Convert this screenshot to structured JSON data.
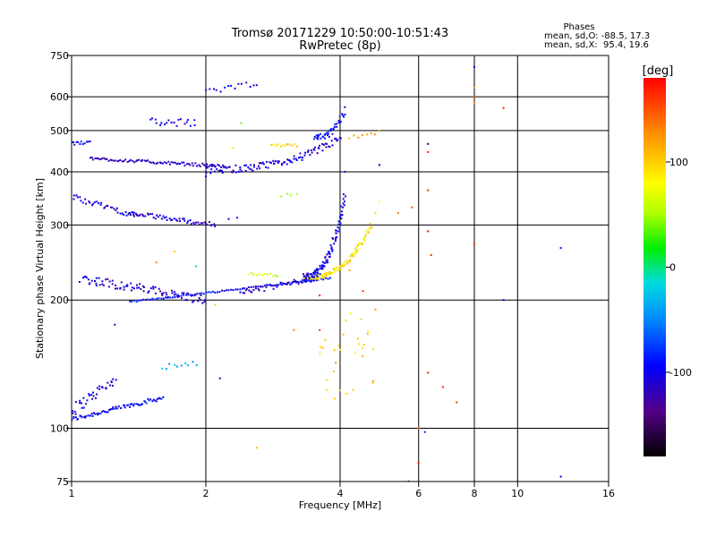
{
  "chart_data": {
    "type": "scatter",
    "title": "Tromsø 20171229 10:50:00-10:51:43",
    "subtitle": "RwPretec (8p)",
    "xlabel": "Frequency [MHz]",
    "ylabel": "Stationary phase Virtual Height [km]",
    "xscale": "log",
    "yscale": "log",
    "xlim": [
      1,
      16
    ],
    "ylim": [
      75,
      750
    ],
    "xticks": [
      1,
      2,
      4,
      6,
      8,
      10,
      16
    ],
    "xtick_labels": [
      "1",
      "2",
      "4",
      "6",
      "8",
      "10",
      "16"
    ],
    "yticks": [
      75,
      100,
      200,
      300,
      400,
      500,
      600,
      750
    ],
    "ytick_labels": [
      "75",
      "100",
      "200",
      "300",
      "400",
      "500",
      "600",
      "750"
    ],
    "grid": true,
    "phase_header": {
      "title": "Phases",
      "line1": "mean, sd,O: -88.5, 17.3",
      "line2": "mean, sd,X:  95.4, 19.6"
    },
    "colorbar": {
      "label": "[deg]",
      "range": [
        -180,
        180
      ],
      "ticks": [
        100,
        0,
        -100
      ],
      "tick_labels": [
        "100",
        "0",
        "-100"
      ]
    },
    "traces": [
      {
        "f0": 1.0,
        "f1": 1.6,
        "h0": 105,
        "h1": 118,
        "shape": "flat",
        "phase": -95,
        "n": 70,
        "jitter": 0.012
      },
      {
        "f0": 1.0,
        "f1": 1.25,
        "h0": 110,
        "h1": 130,
        "shape": "flat",
        "phase": -105,
        "n": 35,
        "jitter": 0.03
      },
      {
        "f0": 1.05,
        "f1": 2.0,
        "h0": 225,
        "h1": 200,
        "shape": "flat",
        "phase": -110,
        "n": 90,
        "jitter": 0.025
      },
      {
        "f0": 1.35,
        "f1": 3.8,
        "h0": 198,
        "h1": 225,
        "shape": "flat",
        "phase": -95,
        "n": 90,
        "jitter": 0.004
      },
      {
        "f0": 2.4,
        "f1": 3.5,
        "h0": 208,
        "h1": 225,
        "shape": "flat",
        "phase": -110,
        "n": 40,
        "jitter": 0.015
      },
      {
        "f0": 3.3,
        "f1": 4.7,
        "h0": 225,
        "h1": 300,
        "shape": "rise",
        "phase": 90,
        "n": 110,
        "jitter": 0.015
      },
      {
        "f0": 3.3,
        "f1": 4.1,
        "h0": 225,
        "h1": 350,
        "shape": "rise",
        "phase": -100,
        "n": 110,
        "jitter": 0.025
      },
      {
        "f0": 1.0,
        "f1": 1.4,
        "h0": 350,
        "h1": 315,
        "shape": "flat",
        "phase": -105,
        "n": 40,
        "jitter": 0.015
      },
      {
        "f0": 1.35,
        "f1": 2.1,
        "h0": 320,
        "h1": 300,
        "shape": "flat",
        "phase": -110,
        "n": 55,
        "jitter": 0.012
      },
      {
        "f0": 1.0,
        "f1": 1.1,
        "h0": 465,
        "h1": 470,
        "shape": "flat",
        "phase": -100,
        "n": 12,
        "jitter": 0.01
      },
      {
        "f0": 1.1,
        "f1": 2.2,
        "h0": 430,
        "h1": 412,
        "shape": "flat",
        "phase": -115,
        "n": 80,
        "jitter": 0.008
      },
      {
        "f0": 2.0,
        "f1": 4.0,
        "h0": 405,
        "h1": 480,
        "shape": "rise",
        "phase": -110,
        "n": 110,
        "jitter": 0.02
      },
      {
        "f0": 3.5,
        "f1": 4.1,
        "h0": 480,
        "h1": 560,
        "shape": "rise",
        "phase": -95,
        "n": 40,
        "jitter": 0.02
      },
      {
        "f0": 1.5,
        "f1": 1.9,
        "h0": 525,
        "h1": 520,
        "shape": "flat",
        "phase": -105,
        "n": 20,
        "jitter": 0.02
      },
      {
        "f0": 2.0,
        "f1": 2.6,
        "h0": 615,
        "h1": 645,
        "shape": "flat",
        "phase": -100,
        "n": 15,
        "jitter": 0.015
      },
      {
        "f0": 2.8,
        "f1": 3.2,
        "h0": 460,
        "h1": 462,
        "shape": "flat",
        "phase": 90,
        "n": 12,
        "jitter": 0.008
      },
      {
        "f0": 4.2,
        "f1": 4.9,
        "h0": 480,
        "h1": 495,
        "shape": "flat",
        "phase": 120,
        "n": 8,
        "jitter": 0.01
      },
      {
        "f0": 3.6,
        "f1": 4.8,
        "h0": 120,
        "h1": 190,
        "shape": "scatter",
        "phase": 100,
        "n": 30,
        "jitter": 0.05
      },
      {
        "f0": 1.6,
        "f1": 1.9,
        "h0": 140,
        "h1": 143,
        "shape": "flat",
        "phase": -30,
        "n": 10,
        "jitter": 0.02
      },
      {
        "f0": 2.5,
        "f1": 2.9,
        "h0": 230,
        "h1": 228,
        "shape": "flat",
        "phase": 60,
        "n": 12,
        "jitter": 0.01
      }
    ],
    "scatter_points": [
      [
        2.95,
        350,
        50
      ],
      [
        3.05,
        355,
        40
      ],
      [
        3.1,
        352,
        45
      ],
      [
        2.25,
        310,
        -110
      ],
      [
        2.35,
        312,
        -90
      ],
      [
        5.4,
        320,
        130
      ],
      [
        5.8,
        330,
        150
      ],
      [
        6.3,
        290,
        180
      ],
      [
        6.4,
        255,
        160
      ],
      [
        6.3,
        362,
        170
      ],
      [
        6.3,
        465,
        -160
      ],
      [
        6.3,
        445,
        170
      ],
      [
        8.0,
        705,
        -110
      ],
      [
        8.0,
        630,
        120
      ],
      [
        8.0,
        600,
        150
      ],
      [
        8.0,
        580,
        130
      ],
      [
        8.0,
        270,
        160
      ],
      [
        9.3,
        565,
        170
      ],
      [
        12.5,
        265,
        -110
      ],
      [
        9.3,
        200,
        -110
      ],
      [
        6.3,
        135,
        170
      ],
      [
        6.8,
        125,
        170
      ],
      [
        7.3,
        115,
        160
      ],
      [
        6.0,
        100,
        130
      ],
      [
        6.2,
        98,
        -80
      ],
      [
        6.0,
        83,
        170
      ],
      [
        12.5,
        77,
        -100
      ],
      [
        5.7,
        75,
        -100
      ],
      [
        2.6,
        90,
        110
      ],
      [
        2.15,
        131,
        -100
      ],
      [
        4.1,
        400,
        -110
      ],
      [
        4.9,
        415,
        -100
      ],
      [
        3.6,
        205,
        170
      ],
      [
        4.5,
        210,
        160
      ],
      [
        4.2,
        235,
        120
      ],
      [
        2.1,
        195,
        100
      ],
      [
        1.25,
        175,
        -110
      ],
      [
        3.15,
        170,
        130
      ],
      [
        3.6,
        170,
        160
      ],
      [
        4.8,
        190,
        120
      ],
      [
        2.0,
        390,
        -100
      ],
      [
        1.55,
        245,
        130
      ],
      [
        1.7,
        260,
        100
      ],
      [
        1.9,
        240,
        -20
      ],
      [
        2.4,
        520,
        40
      ],
      [
        2.3,
        455,
        70
      ],
      [
        4.9,
        340,
        80
      ],
      [
        4.8,
        320,
        100
      ],
      [
        3.2,
        355,
        55
      ]
    ]
  }
}
